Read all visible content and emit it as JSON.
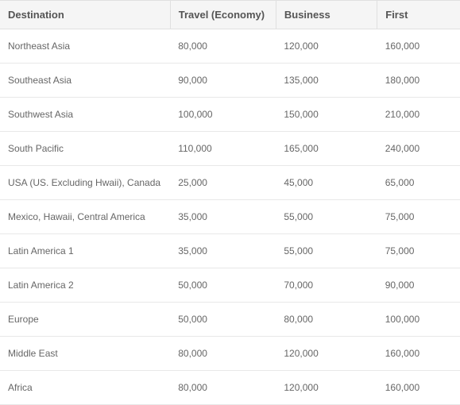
{
  "table": {
    "columns": [
      {
        "key": "destination",
        "label": "Destination"
      },
      {
        "key": "economy",
        "label": "Travel (Economy)"
      },
      {
        "key": "business",
        "label": "Business"
      },
      {
        "key": "first",
        "label": "First"
      }
    ],
    "rows": [
      {
        "destination": "Northeast Asia",
        "economy": "80,000",
        "business": "120,000",
        "first": "160,000"
      },
      {
        "destination": "Southeast Asia",
        "economy": "90,000",
        "business": "135,000",
        "first": "180,000"
      },
      {
        "destination": "Southwest Asia",
        "economy": "100,000",
        "business": "150,000",
        "first": "210,000"
      },
      {
        "destination": "South Pacific",
        "economy": "110,000",
        "business": "165,000",
        "first": "240,000"
      },
      {
        "destination": "USA (US. Excluding Hwaii), Canada",
        "economy": "25,000",
        "business": "45,000",
        "first": "65,000"
      },
      {
        "destination": "Mexico, Hawaii, Central America",
        "economy": "35,000",
        "business": "55,000",
        "first": "75,000"
      },
      {
        "destination": "Latin America 1",
        "economy": "35,000",
        "business": "55,000",
        "first": "75,000"
      },
      {
        "destination": "Latin America 2",
        "economy": "50,000",
        "business": "70,000",
        "first": "90,000"
      },
      {
        "destination": "Europe",
        "economy": "50,000",
        "business": "80,000",
        "first": "100,000"
      },
      {
        "destination": "Middle East",
        "economy": "80,000",
        "business": "120,000",
        "first": "160,000"
      },
      {
        "destination": "Africa",
        "economy": "80,000",
        "business": "120,000",
        "first": "160,000"
      }
    ],
    "styling": {
      "header_bg": "#f5f5f5",
      "header_text_color": "#555555",
      "header_fontsize": 13,
      "header_fontweight": "bold",
      "cell_text_color": "#666666",
      "cell_fontsize": 12,
      "border_color": "#e0e0e0",
      "row_border_color": "#e8e8e8",
      "background_color": "#ffffff",
      "column_widths_pct": [
        37,
        23,
        22,
        18
      ],
      "cell_padding_v": 14,
      "cell_padding_h": 10
    }
  }
}
